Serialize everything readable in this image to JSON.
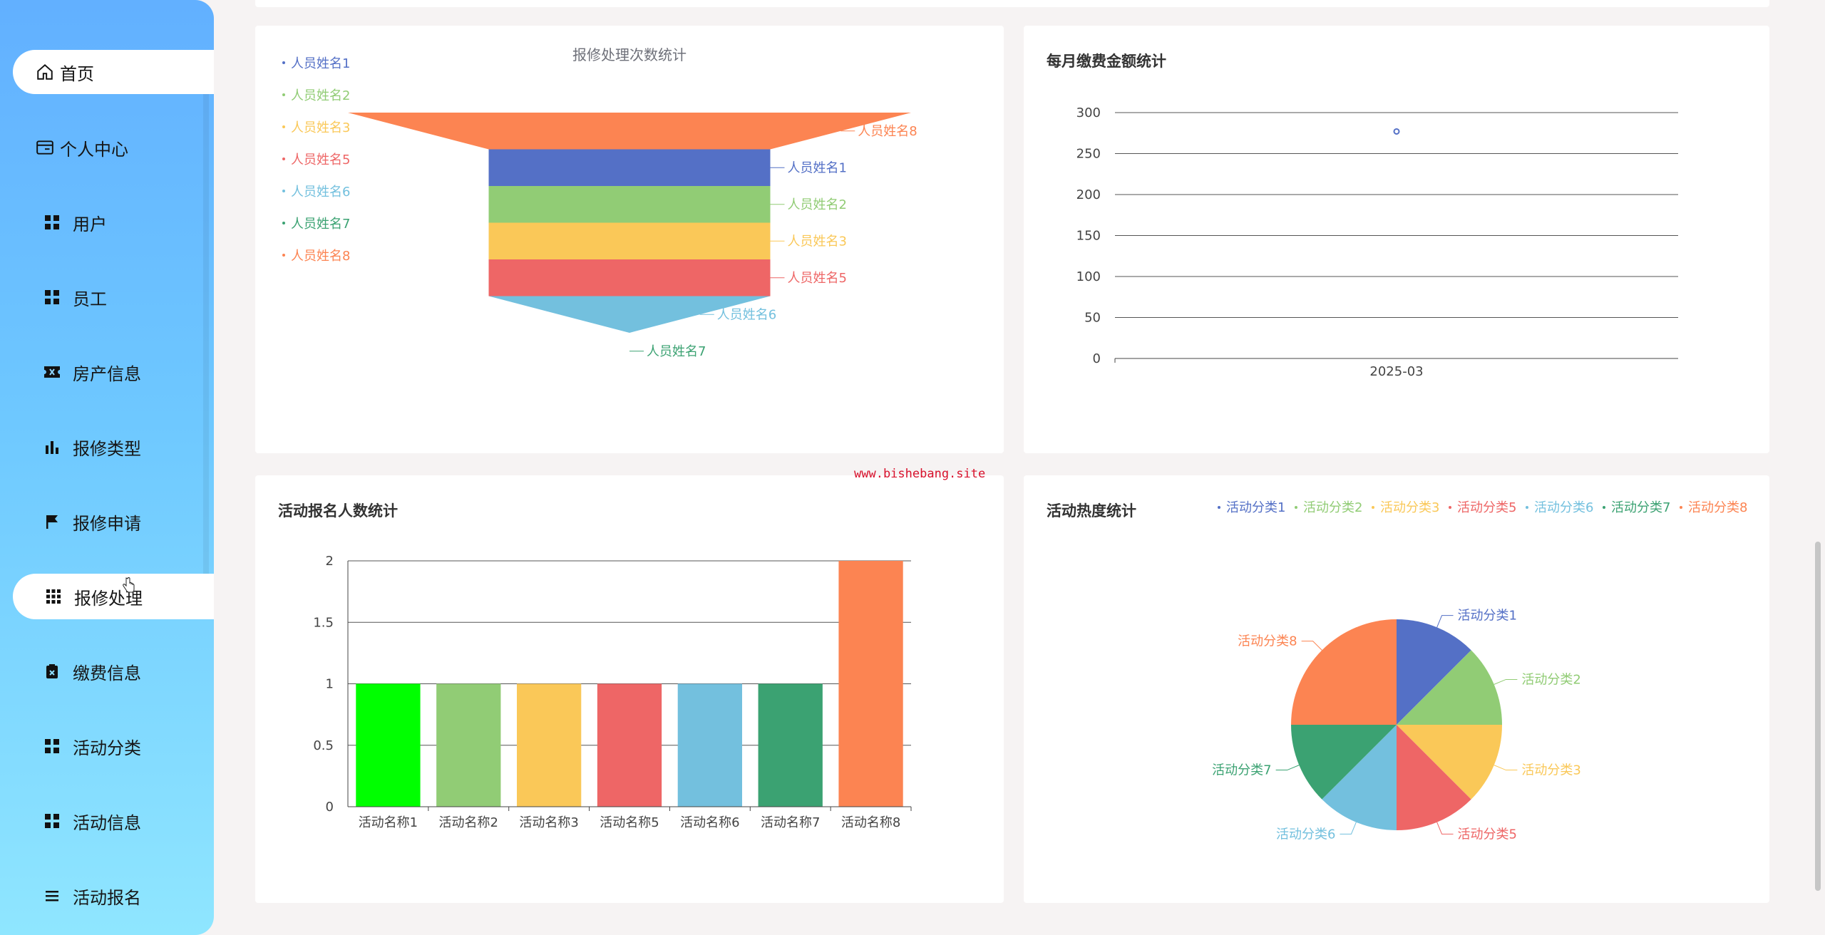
{
  "sidebar": {
    "items": [
      {
        "label": "首页",
        "icon": "home-icon"
      },
      {
        "label": "个人中心",
        "icon": "id-card-icon"
      },
      {
        "label": "用户",
        "icon": "grid-icon"
      },
      {
        "label": "员工",
        "icon": "grid-icon"
      },
      {
        "label": "房产信息",
        "icon": "ticket-icon"
      },
      {
        "label": "报修类型",
        "icon": "bar-chart-icon"
      },
      {
        "label": "报修申请",
        "icon": "flag-icon"
      },
      {
        "label": "报修处理",
        "icon": "grid-3x3-icon",
        "active": true
      },
      {
        "label": "缴费信息",
        "icon": "clipboard-x-icon"
      },
      {
        "label": "活动分类",
        "icon": "grid-icon"
      },
      {
        "label": "活动信息",
        "icon": "grid-icon"
      },
      {
        "label": "活动报名",
        "icon": "list-icon"
      }
    ]
  },
  "watermark": "www.bishebang.site",
  "colors": {
    "blue": "#5470c6",
    "green": "#91cc75",
    "yellow": "#fac858",
    "red": "#ee6666",
    "cyan": "#73c0de",
    "teal": "#3ba272",
    "orange": "#fc8452",
    "lime": "#00ff00"
  },
  "chart_data": [
    {
      "type": "funnel",
      "title": "报修处理次数统计",
      "legend": [
        "人员姓名1",
        "人员姓名2",
        "人员姓名3",
        "人员姓名5",
        "人员姓名6",
        "人员姓名7",
        "人员姓名8"
      ],
      "categories": [
        "人员姓名8",
        "人员姓名1",
        "人员姓名2",
        "人员姓名3",
        "人员姓名5",
        "人员姓名6",
        "人员姓名7"
      ],
      "values": [
        2,
        1,
        1,
        1,
        1,
        1,
        0
      ]
    },
    {
      "type": "scatter",
      "title": "每月缴费金额统计",
      "categories": [
        "2025-03"
      ],
      "values": [
        277
      ],
      "ylim": [
        0,
        300
      ],
      "yticks": [
        "300",
        "250",
        "200",
        "150",
        "100",
        "50",
        "0"
      ],
      "grid": true
    },
    {
      "type": "bar",
      "title": "活动报名人数统计",
      "categories": [
        "活动名称1",
        "活动名称2",
        "活动名称3",
        "活动名称5",
        "活动名称6",
        "活动名称7",
        "活动名称8"
      ],
      "values": [
        1,
        1,
        1,
        1,
        1,
        1,
        2
      ],
      "ylim": [
        0,
        2
      ],
      "yticks": [
        "2",
        "1.5",
        "1",
        "0.5",
        "0"
      ],
      "grid": true
    },
    {
      "type": "pie",
      "title": "活动热度统计",
      "legend": [
        "活动分类1",
        "活动分类2",
        "活动分类3",
        "活动分类5",
        "活动分类6",
        "活动分类7",
        "活动分类8"
      ],
      "categories": [
        "活动分类1",
        "活动分类2",
        "活动分类3",
        "活动分类5",
        "活动分类6",
        "活动分类7",
        "活动分类8"
      ],
      "values": [
        1,
        1,
        1,
        1,
        1,
        1,
        2
      ],
      "legend_position": "top-right"
    }
  ]
}
